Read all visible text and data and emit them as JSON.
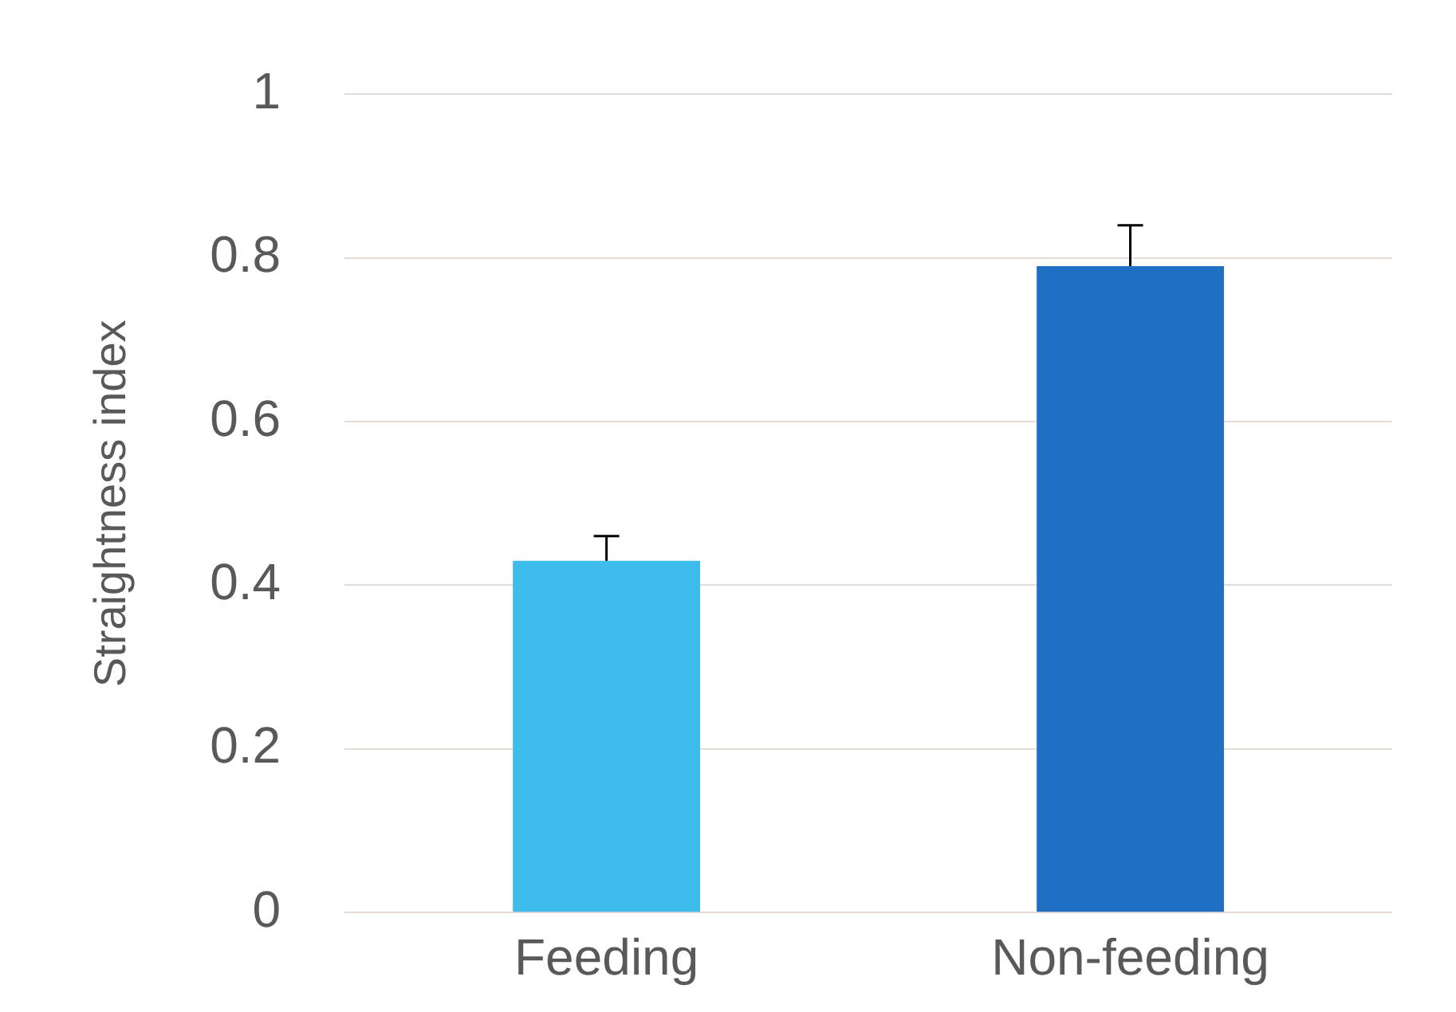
{
  "chart_data": {
    "type": "bar",
    "ylabel": "Straightness index",
    "categories": [
      "Feeding",
      "Non-feeding"
    ],
    "values": [
      0.43,
      0.79
    ],
    "colors": [
      "#3dbbeb",
      "#1f6fc5"
    ],
    "errors": [
      0.03,
      0.05
    ],
    "ylim": [
      0,
      1
    ],
    "yticks": [
      0,
      0.2,
      0.4,
      0.6,
      0.8,
      1
    ],
    "grid": "y",
    "legend": false
  }
}
